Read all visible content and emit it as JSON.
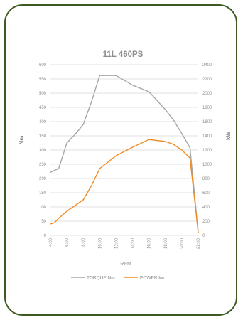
{
  "chart_data": {
    "type": "line",
    "title": "11L 460PS",
    "xlabel": "RPM",
    "ylabel_left": "Nm",
    "ylabel_right": "kW",
    "x_tick_labels": [
      "4:00",
      "6:00",
      "8:00",
      "10:00",
      "12:00",
      "14:00",
      "16:00",
      "18:00",
      "20:00",
      "22:00"
    ],
    "ylim_left": [
      0,
      600
    ],
    "ylim_right": [
      0,
      2400
    ],
    "y_left_ticks": [
      0,
      50,
      100,
      150,
      200,
      250,
      300,
      350,
      400,
      450,
      500,
      550,
      600
    ],
    "y_right_ticks": [
      0,
      200,
      400,
      600,
      800,
      1000,
      1200,
      1400,
      1600,
      1800,
      2000,
      2200,
      2400
    ],
    "grid": true,
    "legend_position": "bottom",
    "series": [
      {
        "name": "TORQUE Nm",
        "color": "#a6a6a6",
        "axis": "left",
        "x": [
          400,
          500,
          600,
          700,
          800,
          900,
          1000,
          1200,
          1400,
          1600,
          1800,
          1900,
          2000,
          2100,
          2200
        ],
        "y": [
          222,
          235,
          325,
          355,
          390,
          470,
          562,
          562,
          528,
          505,
          442,
          405,
          358,
          308,
          8
        ]
      },
      {
        "name": "POWER kw",
        "color": "#f08a24",
        "axis": "left",
        "x": [
          400,
          450,
          500,
          600,
          700,
          800,
          900,
          1000,
          1200,
          1400,
          1600,
          1800,
          1900,
          2000,
          2100,
          2200
        ],
        "y": [
          40,
          45,
          60,
          85,
          105,
          125,
          175,
          235,
          280,
          310,
          337,
          330,
          320,
          300,
          272,
          10
        ]
      }
    ]
  }
}
